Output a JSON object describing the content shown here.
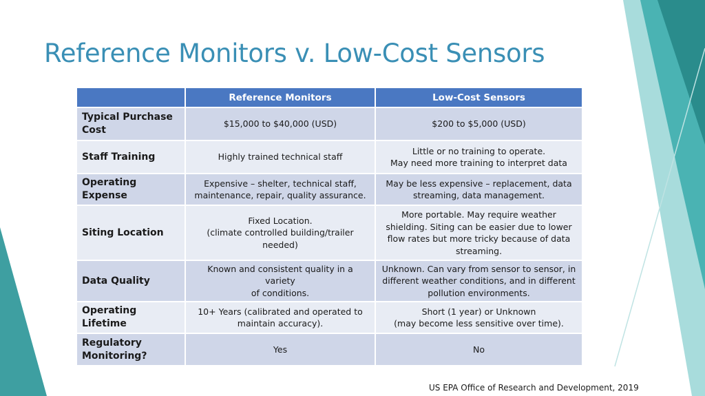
{
  "slide": {
    "title": "Reference Monitors v. Low-Cost Sensors",
    "footer": "US EPA Office of Research and Development, 2019"
  },
  "table": {
    "columns": [
      "",
      "Reference Monitors",
      "Low-Cost Sensors"
    ],
    "rows": [
      {
        "label": "Typical Purchase Cost",
        "reference": [
          "$15,000 to $40,000 (USD)"
        ],
        "lowcost": [
          "$200 to $5,000 (USD)"
        ]
      },
      {
        "label": "Staff Training",
        "reference": [
          "Highly trained technical staff"
        ],
        "lowcost": [
          "Little or no training to operate.",
          "May need more training to interpret data"
        ]
      },
      {
        "label": "Operating Expense",
        "reference": [
          "Expensive – shelter, technical staff,",
          "maintenance, repair, quality assurance."
        ],
        "lowcost": [
          "May be less expensive – replacement, data",
          "streaming, data management."
        ]
      },
      {
        "label": "Siting Location",
        "reference": [
          "Fixed Location.",
          "(climate controlled building/trailer",
          "needed)"
        ],
        "lowcost": [
          "More portable. May require weather",
          "shielding. Siting can be easier due to lower",
          "flow rates but more tricky because of data",
          "streaming."
        ]
      },
      {
        "label": "Data Quality",
        "reference": [
          "Known and consistent quality in a variety",
          "of conditions."
        ],
        "lowcost": [
          "Unknown.  Can vary from sensor to sensor, in",
          "different weather conditions, and in different",
          "pollution environments."
        ]
      },
      {
        "label": "Operating Lifetime",
        "reference": [
          "10+ Years (calibrated and operated to",
          "maintain accuracy)."
        ],
        "lowcost": [
          "Short (1 year) or Unknown",
          "(may become less sensitive over time)."
        ]
      },
      {
        "label": "Regulatory Monitoring?",
        "reference": [
          "Yes"
        ],
        "lowcost": [
          "No"
        ]
      }
    ]
  },
  "colors": {
    "title": "#3a8fb5",
    "header_bg": "#4a78c2",
    "row_band_dark": "#cfd6e8",
    "row_band_light": "#e8ecf4",
    "accent_teal_dark": "#2a8c8c",
    "accent_teal_mid": "#4ab3b3",
    "accent_teal_light": "#a8dcdc"
  }
}
